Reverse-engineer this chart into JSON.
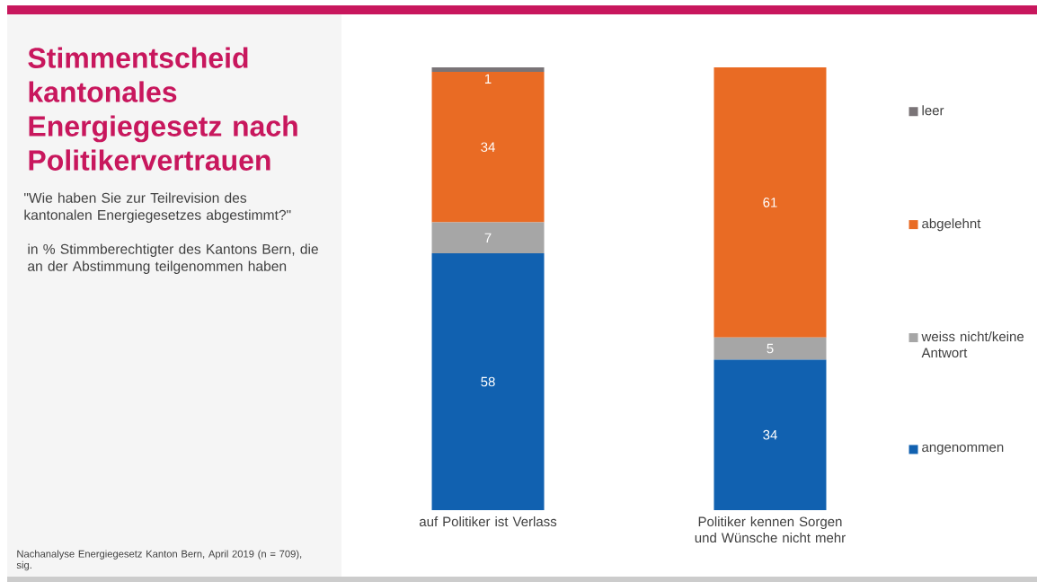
{
  "chart_data": {
    "type": "bar",
    "stacked": true,
    "title": "Stimmentscheid kantonales Energiegesetz nach Politikervertrauen",
    "subtitle": "\"Wie haben Sie zur Teilrevision des kantonalen Energiegesetzes abgestimmt?\"",
    "ylabel": "in % Stimmberechtigter des Kantons Bern, die an der Abstimmung teilgenommen haben",
    "annotations": [
      "Nachanalyse Energiegesetz Kanton Bern, April 2019 (n = 709), sig."
    ],
    "categories": [
      "auf Politiker ist Verlass",
      "Politiker kennen Sorgen und Wünsche nicht mehr"
    ],
    "series": [
      {
        "name": "angenommen",
        "color": "#1161b0",
        "values": [
          58,
          34
        ],
        "value_labels": [
          "58",
          "34"
        ]
      },
      {
        "name": "weiss nicht/keine Antwort",
        "color": "#a6a6a6",
        "values": [
          7,
          5
        ],
        "value_labels": [
          "7",
          "5"
        ]
      },
      {
        "name": "abgelehnt",
        "color": "#e96b24",
        "values": [
          34,
          61
        ],
        "value_labels": [
          "34",
          "61"
        ]
      },
      {
        "name": "leer",
        "color": "#7a7477",
        "values": [
          1,
          0
        ],
        "value_labels": [
          "1",
          null
        ]
      }
    ],
    "legend": "right"
  }
}
